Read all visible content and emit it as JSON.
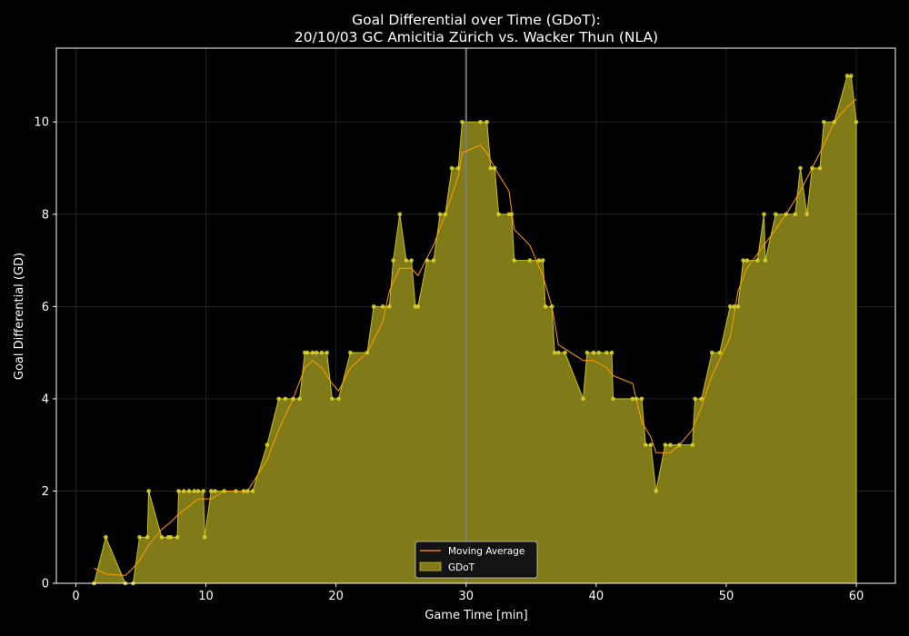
{
  "chart_data": {
    "type": "area",
    "title_line1": "Goal Differential over Time (GDoT):",
    "title_line2": "20/10/03 GC Amicitia Zürich  vs.  Wacker Thun (NLA)",
    "xlabel": "Game Time [min]",
    "ylabel": "Goal Differential (GD)",
    "xlim": [
      -1.5,
      63
    ],
    "ylim": [
      0,
      11.6
    ],
    "xticks": [
      0,
      10,
      20,
      30,
      40,
      50,
      60
    ],
    "yticks": [
      0,
      2,
      4,
      6,
      8,
      10
    ],
    "grid": true,
    "legend_position": "bottom-center",
    "halftime_line_x": 30,
    "colors": {
      "background": "#000000",
      "area_fill": "#807a18",
      "area_edge": "#c8c018",
      "markers": "#d6d02a",
      "moving_average": "#ff9f00",
      "halftime_line": "#808080",
      "grid": "#2a2a2a"
    },
    "series": [
      {
        "name": "GDoT",
        "x": [
          1.4,
          2.3,
          3.8,
          4.4,
          4.9,
          5.5,
          5.6,
          6.6,
          7.1,
          7.3,
          7.8,
          7.9,
          8.3,
          8.7,
          9.1,
          9.4,
          9.8,
          9.9,
          10.4,
          10.7,
          11.4,
          12.3,
          12.9,
          13.2,
          13.6,
          14.7,
          15.6,
          16.1,
          16.7,
          17.2,
          17.6,
          17.8,
          18.2,
          18.5,
          18.9,
          19.3,
          19.7,
          20.2,
          21.1,
          22.4,
          22.9,
          23.6,
          24.1,
          24.4,
          24.9,
          25.4,
          25.8,
          26.1,
          26.3,
          27.0,
          27.5,
          28.0,
          28.4,
          28.9,
          29.4,
          29.7,
          31.1,
          31.6,
          31.9,
          32.2,
          32.5,
          33.3,
          33.5,
          33.7,
          34.9,
          35.6,
          35.9,
          36.1,
          36.6,
          36.8,
          37.1,
          37.6,
          39.0,
          39.3,
          39.8,
          40.2,
          40.8,
          41.2,
          41.3,
          42.8,
          43.1,
          43.5,
          43.8,
          44.2,
          44.6,
          45.3,
          45.7,
          46.4,
          47.4,
          47.6,
          48.1,
          48.9,
          49.5,
          50.3,
          50.6,
          50.9,
          51.3,
          51.6,
          52.4,
          52.9,
          53.0,
          53.8,
          54.6,
          55.3,
          55.7,
          56.2,
          56.6,
          57.2,
          57.5,
          58.3,
          59.3,
          59.6,
          60.0
        ],
        "values": [
          0,
          1,
          0,
          0,
          1,
          1,
          2,
          1,
          1,
          1,
          1,
          2,
          2,
          2,
          2,
          2,
          2,
          1,
          2,
          2,
          2,
          2,
          2,
          2,
          2,
          3,
          4,
          4,
          4,
          4,
          5,
          5,
          5,
          5,
          5,
          5,
          4,
          4,
          5,
          5,
          6,
          6,
          6,
          7,
          8,
          7,
          7,
          6,
          6,
          7,
          7,
          8,
          8,
          9,
          9,
          10,
          10,
          10,
          9,
          9,
          8,
          8,
          8,
          7,
          7,
          7,
          7,
          6,
          6,
          5,
          5,
          5,
          4,
          5,
          5,
          5,
          5,
          5,
          4,
          4,
          4,
          4,
          3,
          3,
          2,
          3,
          3,
          3,
          3,
          4,
          4,
          5,
          5,
          6,
          6,
          6,
          7,
          7,
          7,
          8,
          7,
          8,
          8,
          8,
          9,
          8,
          9,
          9,
          10,
          10,
          11,
          11,
          10
        ]
      },
      {
        "name": "Moving Average",
        "x": [
          1.4,
          2.3,
          3.8,
          4.4,
          4.9,
          5.6,
          6.6,
          7.3,
          7.9,
          8.7,
          9.4,
          10.4,
          11.4,
          12.3,
          13.2,
          14.7,
          15.6,
          16.7,
          17.6,
          18.2,
          18.9,
          19.7,
          20.2,
          21.1,
          22.4,
          23.6,
          24.1,
          24.9,
          25.8,
          26.3,
          27.5,
          28.4,
          29.4,
          29.7,
          31.1,
          31.6,
          32.2,
          33.3,
          33.7,
          34.9,
          35.9,
          36.6,
          37.1,
          39.0,
          39.8,
          40.8,
          41.3,
          42.8,
          43.5,
          44.2,
          44.6,
          45.7,
          46.4,
          47.4,
          48.1,
          48.9,
          50.3,
          50.9,
          51.6,
          52.9,
          53.8,
          54.6,
          55.7,
          56.6,
          57.5,
          58.3,
          59.3,
          60.0
        ],
        "values": [
          0.33,
          0.2,
          0.17,
          0.33,
          0.5,
          0.83,
          1.17,
          1.33,
          1.5,
          1.67,
          1.83,
          1.83,
          2.0,
          2.0,
          2.0,
          2.67,
          3.33,
          4.0,
          4.67,
          4.83,
          4.67,
          4.33,
          4.17,
          4.67,
          5.0,
          5.67,
          6.33,
          6.83,
          6.83,
          6.67,
          7.33,
          8.0,
          8.83,
          9.33,
          9.5,
          9.33,
          9.0,
          8.5,
          7.67,
          7.33,
          6.67,
          6.0,
          5.17,
          4.83,
          4.83,
          4.67,
          4.5,
          4.33,
          3.5,
          3.17,
          2.83,
          2.83,
          3.0,
          3.33,
          3.83,
          4.5,
          5.33,
          6.33,
          6.83,
          7.33,
          7.67,
          8.0,
          8.5,
          9.0,
          9.5,
          10.0,
          10.33,
          10.5
        ]
      }
    ]
  }
}
